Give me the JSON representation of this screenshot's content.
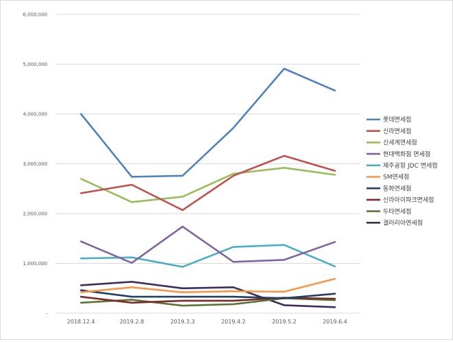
{
  "chart_data": {
    "type": "line",
    "title": "",
    "xlabel": "",
    "ylabel": "",
    "categories": [
      "2018.12.4",
      "2019.2.8",
      "2019.3.3",
      "2019.4.2",
      "2019.5.2",
      "2019.6.4"
    ],
    "ylim": [
      0,
      6000000
    ],
    "y_ticks": [
      0,
      1000000,
      2000000,
      3000000,
      4000000,
      5000000,
      6000000
    ],
    "y_tick_labels": [
      "-",
      "1,000,000",
      "2,000,000",
      "3,000,000",
      "4,000,000",
      "5,000,000",
      "6,000,000"
    ],
    "grid": "horizontal",
    "legend_position": "right",
    "series": [
      {
        "name": "롯데면세점",
        "color": "#4f81bd",
        "values": [
          4000000,
          2740000,
          2760000,
          3720000,
          4910000,
          4470000
        ]
      },
      {
        "name": "신라면세점",
        "color": "#c0504d",
        "values": [
          2410000,
          2580000,
          2070000,
          2760000,
          3160000,
          2860000
        ]
      },
      {
        "name": "신세계면세점",
        "color": "#9bbb59",
        "values": [
          2700000,
          2230000,
          2340000,
          2800000,
          2920000,
          2780000
        ]
      },
      {
        "name": "현대백화점 면세점",
        "color": "#8064a2",
        "values": [
          1440000,
          1010000,
          1740000,
          1030000,
          1070000,
          1430000
        ]
      },
      {
        "name": "제주공항 JDC 면세점",
        "color": "#4bacc6",
        "values": [
          1100000,
          1120000,
          930000,
          1330000,
          1370000,
          940000
        ]
      },
      {
        "name": "SM면세점",
        "color": "#f79646",
        "values": [
          420000,
          520000,
          420000,
          440000,
          430000,
          690000
        ]
      },
      {
        "name": "동화면세점",
        "color": "#1f3f63",
        "values": [
          460000,
          330000,
          330000,
          330000,
          300000,
          390000
        ]
      },
      {
        "name": "신라아이파크면세점",
        "color": "#7a2a28",
        "values": [
          330000,
          210000,
          250000,
          250000,
          310000,
          290000
        ]
      },
      {
        "name": "두타면세점",
        "color": "#5e7233",
        "values": [
          210000,
          270000,
          150000,
          180000,
          300000,
          260000
        ]
      },
      {
        "name": "갤러리아면세점",
        "color": "#3d2c5c",
        "values": [
          560000,
          630000,
          500000,
          520000,
          160000,
          120000
        ]
      }
    ]
  }
}
